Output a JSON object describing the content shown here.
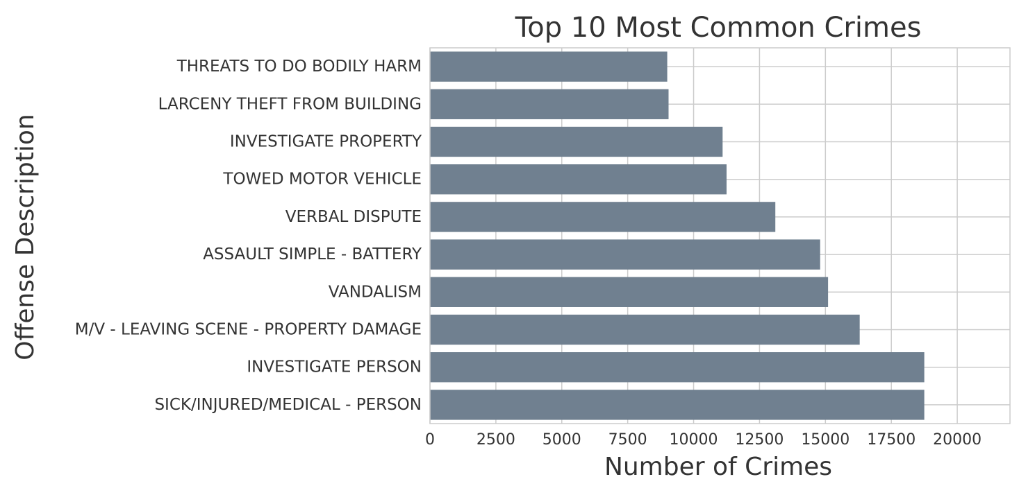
{
  "chart_data": {
    "type": "bar",
    "orientation": "horizontal",
    "title": "Top 10 Most Common Crimes",
    "xlabel": "Number of Crimes",
    "ylabel": "Offense Description",
    "categories": [
      "THREATS TO DO BODILY HARM",
      "LARCENY THEFT FROM BUILDING",
      "INVESTIGATE PROPERTY",
      "TOWED MOTOR VEHICLE",
      "VERBAL DISPUTE",
      "ASSAULT SIMPLE - BATTERY",
      "VANDALISM",
      "M/V - LEAVING SCENE - PROPERTY DAMAGE",
      "INVESTIGATE PERSON",
      "SICK/INJURED/MEDICAL - PERSON"
    ],
    "values": [
      9000,
      9050,
      11100,
      11250,
      13100,
      14800,
      15100,
      16300,
      18750,
      18750
    ],
    "xlim": [
      0,
      22000
    ],
    "xticks": [
      0,
      2500,
      5000,
      7500,
      10000,
      12500,
      15000,
      17500,
      20000
    ],
    "grid": true,
    "bar_color": "#708090"
  }
}
